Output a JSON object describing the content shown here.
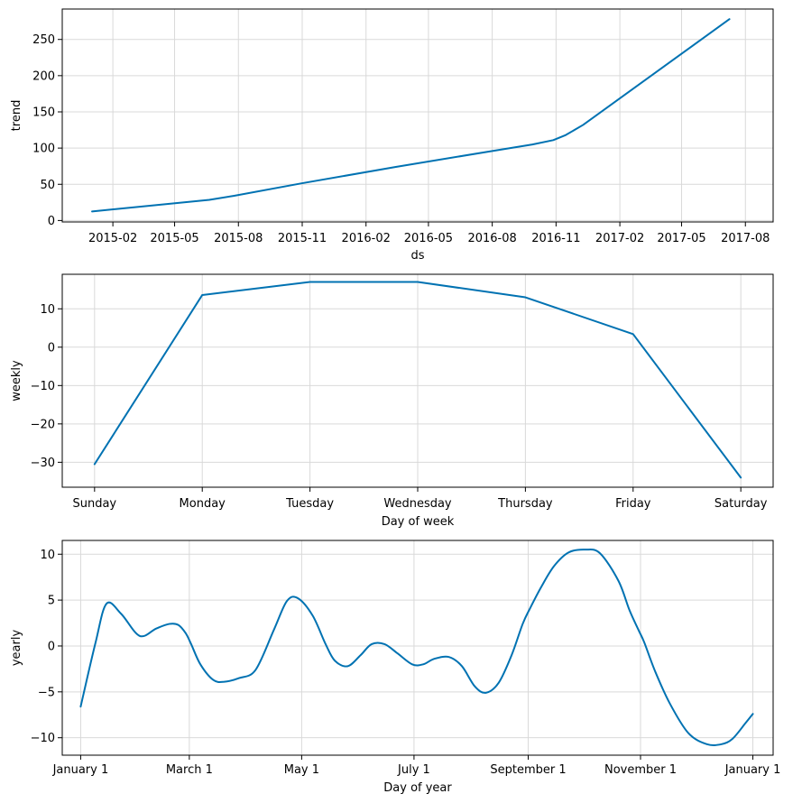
{
  "chart_data": [
    {
      "type": "line",
      "id": "trend",
      "xlabel": "ds",
      "ylabel": "trend",
      "x_scale": "date",
      "xlim": [
        "2014-11-20",
        "2017-09-10"
      ],
      "ylim": [
        -2,
        292
      ],
      "grid": true,
      "xticks": [
        {
          "value": "2015-02-01",
          "label": "2015-02"
        },
        {
          "value": "2015-05-01",
          "label": "2015-05"
        },
        {
          "value": "2015-08-01",
          "label": "2015-08"
        },
        {
          "value": "2015-11-01",
          "label": "2015-11"
        },
        {
          "value": "2016-02-01",
          "label": "2016-02"
        },
        {
          "value": "2016-05-01",
          "label": "2016-05"
        },
        {
          "value": "2016-08-01",
          "label": "2016-08"
        },
        {
          "value": "2016-11-01",
          "label": "2016-11"
        },
        {
          "value": "2017-02-01",
          "label": "2017-02"
        },
        {
          "value": "2017-05-01",
          "label": "2017-05"
        },
        {
          "value": "2017-08-01",
          "label": "2017-08"
        }
      ],
      "yticks": [
        0,
        50,
        100,
        150,
        200,
        250
      ],
      "series": [
        {
          "color": "#0072b2",
          "x": [
            "2015-01-02",
            "2015-06-20",
            "2015-07-25",
            "2015-11-01",
            "2016-03-15",
            "2016-08-01",
            "2016-09-28",
            "2016-10-28",
            "2016-11-15",
            "2016-12-10",
            "2017-07-09"
          ],
          "y": [
            12.5,
            28.5,
            34,
            51.5,
            74,
            96,
            105,
            111,
            118,
            132,
            278
          ]
        }
      ]
    },
    {
      "type": "line",
      "id": "weekly",
      "xlabel": "Day of week",
      "ylabel": "weekly",
      "ylim": [
        -36.5,
        19
      ],
      "grid": true,
      "categories": [
        "Sunday",
        "Monday",
        "Tuesday",
        "Wednesday",
        "Thursday",
        "Friday",
        "Saturday"
      ],
      "yticks": [
        -30,
        -20,
        -10,
        0,
        10
      ],
      "series": [
        {
          "color": "#0072b2",
          "values": [
            -30.5,
            13.6,
            17,
            17,
            13,
            3.4,
            -34
          ]
        }
      ]
    },
    {
      "type": "line",
      "id": "yearly",
      "xlabel": "Day of year",
      "ylabel": "yearly",
      "xlim": [
        -10,
        376
      ],
      "ylim": [
        -11.9,
        11.5
      ],
      "grid": true,
      "xticks": [
        {
          "value": 0,
          "label": "January 1"
        },
        {
          "value": 59,
          "label": "March 1"
        },
        {
          "value": 120,
          "label": "May 1"
        },
        {
          "value": 181,
          "label": "July 1"
        },
        {
          "value": 243,
          "label": "September 1"
        },
        {
          "value": 304,
          "label": "November 1"
        },
        {
          "value": 365,
          "label": "January 1"
        }
      ],
      "yticks": [
        -10,
        -5,
        0,
        5,
        10
      ],
      "series": [
        {
          "color": "#0072b2",
          "x": [
            0,
            8,
            14,
            22,
            32,
            41,
            48,
            53,
            57,
            60,
            65,
            72,
            78,
            86,
            95,
            105,
            112,
            118,
            126,
            133,
            138,
            145,
            152,
            158,
            165,
            172,
            180,
            186,
            192,
            200,
            207,
            214,
            220,
            227,
            234,
            240,
            244,
            250,
            257,
            265,
            274,
            282,
            292,
            298,
            303,
            306,
            312,
            320,
            330,
            340,
            348,
            354,
            361,
            365
          ],
          "y": [
            -6.6,
            0.3,
            4.6,
            3.5,
            1.1,
            1.9,
            2.4,
            2.3,
            1.4,
            0.2,
            -2,
            -3.7,
            -3.9,
            -3.5,
            -2.6,
            1.8,
            4.9,
            5.2,
            3.3,
            0.2,
            -1.6,
            -2.2,
            -1,
            0.2,
            0.2,
            -0.8,
            -2,
            -2,
            -1.4,
            -1.2,
            -2.2,
            -4.4,
            -5.1,
            -4,
            -1,
            2.4,
            4.1,
            6.4,
            8.7,
            10.2,
            10.5,
            10.1,
            7.1,
            3.9,
            1.7,
            0.4,
            -2.8,
            -6.3,
            -9.5,
            -10.7,
            -10.7,
            -10.1,
            -8.4,
            -7.4
          ]
        }
      ]
    }
  ]
}
